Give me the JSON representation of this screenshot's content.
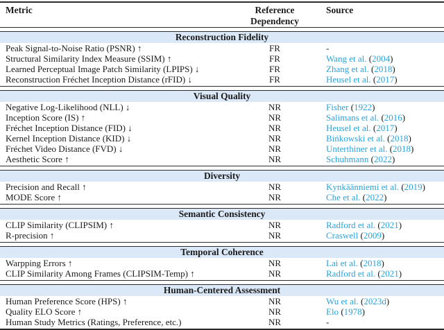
{
  "colors": {
    "citation_link": "#2aa2db",
    "section_band": "#dbe8f8",
    "rule": "#2b2b2b",
    "text": "#1b1b1b"
  },
  "table": {
    "header": {
      "metric": "Metric",
      "reference_line1": "Reference",
      "reference_line2": "Dependency",
      "source": "Source"
    },
    "sections": [
      {
        "title": "Reconstruction Fidelity",
        "rows": [
          {
            "metric": "Peak Signal-to-Noise Ratio (PSNR) ↑",
            "reference": "FR",
            "source": "-"
          },
          {
            "metric": "Structural Similarity Index Measure (SSIM) ↑",
            "reference": "FR",
            "source": {
              "name": "Wang et al.",
              "year": "2004"
            }
          },
          {
            "metric": "Learned Perceptual Image Patch Similarity (LPIPS) ↓",
            "reference": "FR",
            "source": {
              "name": "Zhang et al.",
              "year": "2018"
            }
          },
          {
            "metric": "Reconstruction Fréchet Inception Distance (rFID) ↓",
            "reference": "FR",
            "source": {
              "name": "Heusel et al.",
              "year": "2017"
            }
          }
        ]
      },
      {
        "title": "Visual Quality",
        "rows": [
          {
            "metric": "Negative Log-Likelihood (NLL) ↓",
            "reference": "NR",
            "source": {
              "name": "Fisher",
              "year": "1922"
            }
          },
          {
            "metric": "Inception Score (IS) ↑",
            "reference": "NR",
            "source": {
              "name": "Salimans et al.",
              "year": "2016"
            }
          },
          {
            "metric": "Fréchet Inception Distance (FID) ↓",
            "reference": "NR",
            "source": {
              "name": "Heusel et al.",
              "year": "2017"
            }
          },
          {
            "metric": "Kernel Inception Distance (KID) ↓",
            "reference": "NR",
            "source": {
              "name": "Bińkowski et al.",
              "year": "2018"
            }
          },
          {
            "metric": "Fréchet Video Distance (FVD) ↓",
            "reference": "NR",
            "source": {
              "name": "Unterthiner et al.",
              "year": "2018"
            }
          },
          {
            "metric": "Aesthetic Score ↑",
            "reference": "NR",
            "source": {
              "name": "Schuhmann",
              "year": "2022"
            }
          }
        ]
      },
      {
        "title": "Diversity",
        "rows": [
          {
            "metric": "Precision and Recall ↑",
            "reference": "NR",
            "source": {
              "name": "Kynkäänniemi et al.",
              "year": "2019"
            }
          },
          {
            "metric": "MODE Score ↑",
            "reference": "NR",
            "source": {
              "name": "Che et al.",
              "year": "2022"
            }
          }
        ]
      },
      {
        "title": "Semantic Consistency",
        "rows": [
          {
            "metric": "CLIP Similarity (CLIPSIM) ↑",
            "reference": "NR",
            "source": {
              "name": "Radford et al.",
              "year": "2021"
            }
          },
          {
            "metric": "R-precision ↑",
            "reference": "NR",
            "source": {
              "name": "Craswell",
              "year": "2009"
            }
          }
        ]
      },
      {
        "title": "Temporal Coherence",
        "rows": [
          {
            "metric": "Warpping Errors ↑",
            "reference": "NR",
            "source": {
              "name": "Lai et al.",
              "year": "2018"
            }
          },
          {
            "metric": "CLIP Similarity Among Frames (CLIPSIM-Temp) ↑",
            "reference": "NR",
            "source": {
              "name": "Radford et al.",
              "year": "2021"
            }
          }
        ]
      },
      {
        "title": "Human-Centered Assessment",
        "rows": [
          {
            "metric": "Human Preference Score (HPS) ↑",
            "reference": "NR",
            "source": {
              "name": "Wu et al.",
              "year": "2023d"
            }
          },
          {
            "metric": "Quality ELO Score ↑",
            "reference": "NR",
            "source": {
              "name": "Elo",
              "year": "1978"
            }
          },
          {
            "metric": "Human Study Metrics (Ratings, Preference, etc.)",
            "reference": "NR",
            "source": "-"
          }
        ]
      }
    ]
  }
}
